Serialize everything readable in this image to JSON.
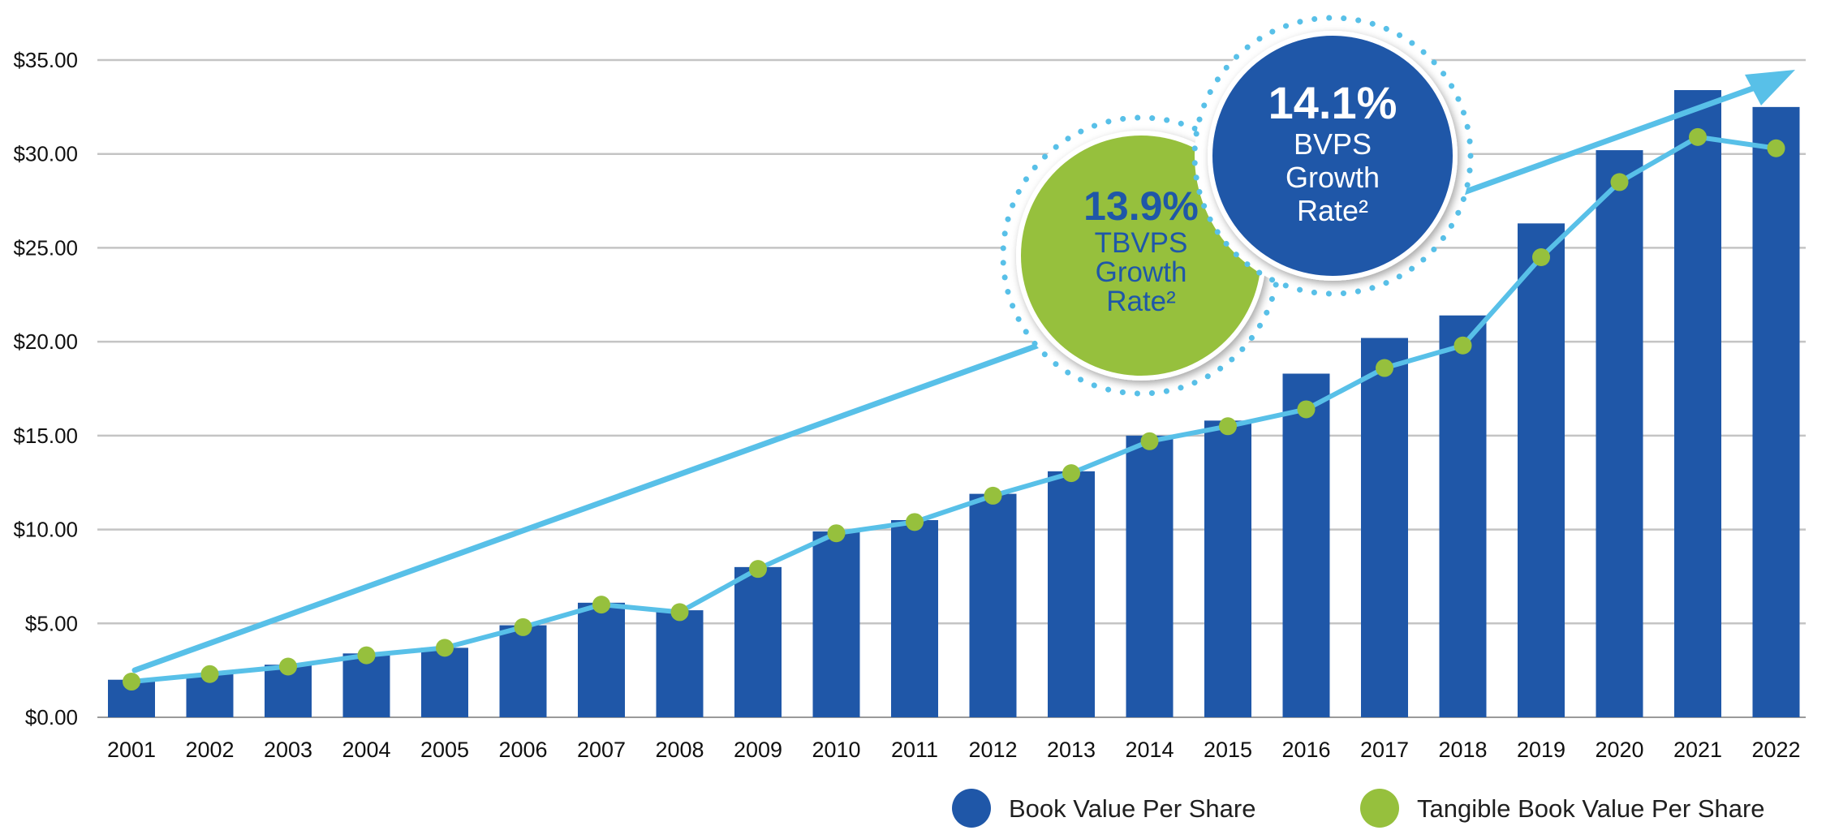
{
  "chart_data": {
    "type": "bar",
    "categories": [
      "2001",
      "2002",
      "2003",
      "2004",
      "2005",
      "2006",
      "2007",
      "2008",
      "2009",
      "2010",
      "2011",
      "2012",
      "2013",
      "2014",
      "2015",
      "2016",
      "2017",
      "2018",
      "2019",
      "2020",
      "2021",
      "2022"
    ],
    "series": [
      {
        "name": "Book Value Per Share",
        "type": "bar",
        "color": "#1f57a8",
        "values": [
          2.0,
          2.3,
          2.8,
          3.4,
          3.7,
          4.9,
          6.1,
          5.7,
          8.0,
          9.9,
          10.5,
          11.9,
          13.1,
          15.0,
          15.8,
          18.3,
          20.2,
          21.4,
          26.3,
          30.2,
          33.4,
          32.5
        ]
      },
      {
        "name": "Tangible Book Value Per Share",
        "type": "line",
        "color": "#96c03d",
        "values": [
          1.9,
          2.3,
          2.7,
          3.3,
          3.7,
          4.8,
          6.0,
          5.6,
          7.9,
          9.8,
          10.4,
          11.8,
          13.0,
          14.7,
          15.5,
          16.4,
          18.6,
          19.8,
          24.5,
          28.5,
          30.9,
          30.3
        ]
      }
    ],
    "ylim": [
      0,
      35
    ],
    "yticks": [
      0,
      5,
      10,
      15,
      20,
      25,
      30,
      35
    ],
    "ytick_labels": [
      "$0.00",
      "$5.00",
      "$10.00",
      "$15.00",
      "$20.00",
      "$25.00",
      "$30.00",
      "$35.00"
    ],
    "grid": true,
    "title": "",
    "xlabel": "",
    "ylabel": "",
    "legend_position": "bottom-right",
    "annotations": [
      {
        "id": "tbvps",
        "value": "13.9%",
        "lines": [
          "TBVPS",
          "Growth",
          "Rate²"
        ],
        "fill": "#96c03d",
        "text_color": "#1f57a8"
      },
      {
        "id": "bvps",
        "value": "14.1%",
        "lines": [
          "BVPS",
          "Growth",
          "Rate²"
        ],
        "fill": "#1f57a8",
        "text_color": "#ffffff"
      }
    ],
    "trend_arrow_color": "#58c0e8"
  }
}
